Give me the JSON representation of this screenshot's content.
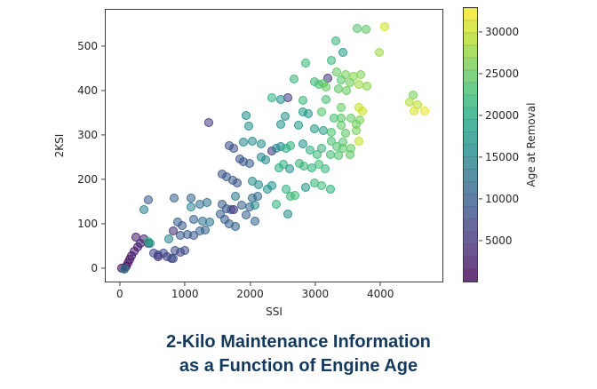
{
  "title": {
    "line1": "2-Kilo Maintenance Information",
    "line2": "as a Function of Engine Age",
    "color": "#15395c"
  },
  "chart_data": {
    "type": "scatter",
    "xlabel": "SSI",
    "ylabel": "2KSI",
    "xlim": [
      -230,
      4965
    ],
    "ylim": [
      -32,
      584
    ],
    "x_ticks": [
      0,
      1000,
      2000,
      3000,
      4000
    ],
    "y_ticks": [
      0,
      100,
      200,
      300,
      400,
      500
    ],
    "grid": false,
    "marker_alpha": 0.55,
    "marker_size_px": 10,
    "colorbar": {
      "label": "Age at Removal",
      "min": 0,
      "max": 33000,
      "ticks": [
        5000,
        10000,
        15000,
        20000,
        25000,
        30000
      ],
      "bands": 22,
      "position": "right"
    },
    "colormap": {
      "name": "viridis",
      "stops": [
        "#440154",
        "#482475",
        "#414487",
        "#355f8d",
        "#2a788e",
        "#21918c",
        "#22a884",
        "#44bf70",
        "#7ad151",
        "#bddf26",
        "#fde725"
      ]
    },
    "points": [
      [
        20,
        2,
        500
      ],
      [
        50,
        0,
        700
      ],
      [
        90,
        6,
        900
      ],
      [
        110,
        14,
        1100
      ],
      [
        140,
        22,
        1400
      ],
      [
        170,
        30,
        1700
      ],
      [
        210,
        40,
        2000
      ],
      [
        260,
        50,
        2400
      ],
      [
        230,
        72,
        2100
      ],
      [
        300,
        58,
        2800
      ],
      [
        350,
        68,
        3100
      ],
      [
        430,
        58,
        3600
      ],
      [
        580,
        28,
        3500
      ],
      [
        60,
        0,
        15500
      ],
      [
        500,
        37,
        7000
      ],
      [
        570,
        33,
        6500
      ],
      [
        650,
        37,
        7000
      ],
      [
        715,
        29,
        6000
      ],
      [
        785,
        24,
        6500
      ],
      [
        840,
        43,
        7500
      ],
      [
        920,
        39,
        7000
      ],
      [
        985,
        43,
        7500
      ],
      [
        810,
        24,
        8000
      ],
      [
        420,
        63,
        21000
      ],
      [
        450,
        59,
        17000
      ],
      [
        740,
        69,
        15000
      ],
      [
        810,
        86,
        4000
      ],
      [
        920,
        76,
        9000
      ],
      [
        1025,
        78,
        9500
      ],
      [
        1120,
        76,
        9000
      ],
      [
        1215,
        86,
        10000
      ],
      [
        1295,
        88,
        10500
      ],
      [
        420,
        157,
        9000
      ],
      [
        350,
        135,
        14000
      ],
      [
        825,
        161,
        10000
      ],
      [
        1080,
        161,
        10500
      ],
      [
        1080,
        141,
        15000
      ],
      [
        1215,
        147,
        12000
      ],
      [
        1325,
        151,
        12500
      ],
      [
        1120,
        112,
        10000
      ],
      [
        880,
        106,
        9500
      ],
      [
        945,
        98,
        9000
      ],
      [
        1255,
        108,
        12000
      ],
      [
        1365,
        106,
        12500
      ],
      [
        1755,
        165,
        13000
      ],
      [
        1555,
        147,
        9500
      ],
      [
        1620,
        137,
        9000
      ],
      [
        1690,
        135,
        9500
      ],
      [
        1730,
        135,
        4500
      ],
      [
        1850,
        145,
        10000
      ],
      [
        1985,
        141,
        10500
      ],
      [
        2025,
        161,
        11000
      ],
      [
        2095,
        165,
        11500
      ],
      [
        2055,
        145,
        15500
      ],
      [
        1920,
        122,
        10000
      ],
      [
        2055,
        108,
        10500
      ],
      [
        1525,
        125,
        9500
      ],
      [
        1595,
        112,
        9000
      ],
      [
        1660,
        102,
        9500
      ],
      [
        1755,
        96,
        10000
      ],
      [
        2390,
        147,
        21000
      ],
      [
        2565,
        125,
        16000
      ],
      [
        2605,
        165,
        22000
      ],
      [
        2675,
        167,
        22500
      ],
      [
        1920,
        347,
        16000
      ],
      [
        2525,
        345,
        17000
      ],
      [
        2795,
        355,
        18000
      ],
      [
        2880,
        351,
        17500
      ],
      [
        3080,
        355,
        24000
      ],
      [
        1960,
        322,
        16500
      ],
      [
        2460,
        327,
        17000
      ],
      [
        2730,
        325,
        17500
      ],
      [
        2975,
        316,
        18000
      ],
      [
        3110,
        312,
        18500
      ],
      [
        1660,
        278,
        8000
      ],
      [
        1730,
        273,
        8500
      ],
      [
        1890,
        286,
        15000
      ],
      [
        2025,
        288,
        15500
      ],
      [
        2160,
        282,
        16000
      ],
      [
        2325,
        267,
        5000
      ],
      [
        2390,
        273,
        15000
      ],
      [
        2460,
        276,
        16000
      ],
      [
        2540,
        273,
        20000
      ],
      [
        2605,
        278,
        21000
      ],
      [
        2795,
        282,
        16500
      ],
      [
        2905,
        269,
        21000
      ],
      [
        3010,
        259,
        22000
      ],
      [
        3080,
        273,
        21500
      ],
      [
        1825,
        249,
        8500
      ],
      [
        1890,
        243,
        9000
      ],
      [
        1985,
        239,
        9500
      ],
      [
        2160,
        253,
        15500
      ],
      [
        2230,
        247,
        16000
      ],
      [
        2430,
        229,
        20500
      ],
      [
        2500,
        237,
        21000
      ],
      [
        2595,
        227,
        16500
      ],
      [
        2745,
        239,
        21500
      ],
      [
        2810,
        233,
        22000
      ],
      [
        2930,
        229,
        21000
      ],
      [
        3040,
        237,
        22500
      ],
      [
        3135,
        227,
        21500
      ],
      [
        1555,
        214,
        8500
      ],
      [
        1620,
        208,
        9000
      ],
      [
        1715,
        200,
        9500
      ],
      [
        1785,
        194,
        8500
      ],
      [
        2025,
        198,
        15500
      ],
      [
        2120,
        190,
        16000
      ],
      [
        2255,
        180,
        16500
      ],
      [
        2325,
        188,
        17000
      ],
      [
        2540,
        180,
        21000
      ],
      [
        2835,
        184,
        17500
      ],
      [
        2975,
        194,
        22000
      ],
      [
        3080,
        188,
        22500
      ],
      [
        1350,
        331,
        5500
      ],
      [
        3175,
        431,
        5000
      ],
      [
        2565,
        386,
        5500
      ],
      [
        2835,
        465,
        22000
      ],
      [
        2660,
        429,
        21500
      ],
      [
        2975,
        422,
        22000
      ],
      [
        3040,
        416,
        23000
      ],
      [
        3110,
        418,
        24000
      ],
      [
        3150,
        410,
        25000
      ],
      [
        2325,
        386,
        21000
      ],
      [
        2460,
        382,
        16500
      ],
      [
        2795,
        380,
        22000
      ],
      [
        3150,
        382,
        23000
      ],
      [
        3635,
        543,
        24000
      ],
      [
        3770,
        541,
        24500
      ],
      [
        4050,
        547,
        30500
      ],
      [
        3295,
        514,
        22000
      ],
      [
        3405,
        488,
        18000
      ],
      [
        3975,
        488,
        28000
      ],
      [
        3240,
        471,
        22000
      ],
      [
        3310,
        445,
        25000
      ],
      [
        3445,
        439,
        26000
      ],
      [
        3580,
        435,
        27000
      ],
      [
        3690,
        439,
        26500
      ],
      [
        3380,
        426,
        24000
      ],
      [
        3515,
        420,
        25500
      ],
      [
        3650,
        416,
        28000
      ],
      [
        3785,
        412,
        27000
      ],
      [
        3340,
        406,
        24500
      ],
      [
        3470,
        402,
        25000
      ],
      [
        3380,
        365,
        25000
      ],
      [
        3650,
        365,
        30000
      ],
      [
        3715,
        357,
        30500
      ],
      [
        3270,
        341,
        23000
      ],
      [
        3380,
        341,
        24000
      ],
      [
        3540,
        341,
        25000
      ],
      [
        3675,
        337,
        26000
      ],
      [
        3380,
        325,
        24500
      ],
      [
        3620,
        327,
        25500
      ],
      [
        3240,
        308,
        23500
      ],
      [
        3445,
        306,
        24500
      ],
      [
        3620,
        312,
        26000
      ],
      [
        3240,
        288,
        23000
      ],
      [
        3405,
        286,
        24000
      ],
      [
        3650,
        288,
        30000
      ],
      [
        3310,
        276,
        23500
      ],
      [
        3415,
        273,
        24500
      ],
      [
        3540,
        273,
        25000
      ],
      [
        3215,
        259,
        22500
      ],
      [
        3340,
        257,
        23500
      ],
      [
        3515,
        259,
        24500
      ],
      [
        3215,
        180,
        21000
      ],
      [
        4485,
        392,
        26000
      ],
      [
        4430,
        376,
        29000
      ],
      [
        4555,
        370,
        29500
      ],
      [
        4500,
        357,
        31000
      ],
      [
        4660,
        357,
        32000
      ]
    ]
  }
}
